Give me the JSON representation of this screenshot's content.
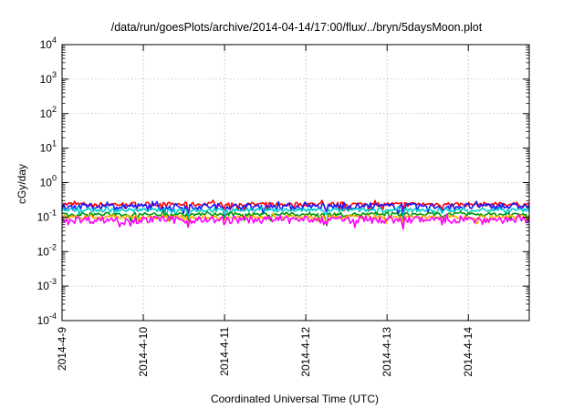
{
  "chart_data": {
    "type": "line",
    "title": "/data/run/goesPlots/archive/2014-04-14/17:00/flux/../bryn/5daysMoon.plot",
    "xlabel": "Coordinated Universal Time (UTC)",
    "ylabel": "cGy/day",
    "y_scale": "log",
    "ylim": [
      0.0001,
      10000
    ],
    "xlim": [
      0,
      5.75
    ],
    "grid": true,
    "x_ticks": [
      "2014-4-9",
      "2014-4-10",
      "2014-4-11",
      "2014-4-12",
      "2014-4-13",
      "2014-4-14"
    ],
    "y_ticks": [
      {
        "value": 0.0001,
        "base": "10",
        "exp": "-4"
      },
      {
        "value": 0.001,
        "base": "10",
        "exp": "-3"
      },
      {
        "value": 0.01,
        "base": "10",
        "exp": "-2"
      },
      {
        "value": 0.1,
        "base": "10",
        "exp": "-1"
      },
      {
        "value": 1,
        "base": "10",
        "exp": "0"
      },
      {
        "value": 10,
        "base": "10",
        "exp": "1"
      },
      {
        "value": 100,
        "base": "10",
        "exp": "2"
      },
      {
        "value": 1000,
        "base": "10",
        "exp": "3"
      },
      {
        "value": 10000,
        "base": "10",
        "exp": "4"
      }
    ],
    "series": [
      {
        "color": "#ff0000",
        "base": 0.235,
        "jitter": 0.035
      },
      {
        "color": "#1a1aff",
        "base": 0.205,
        "jitter": 0.045
      },
      {
        "color": "#00cccc",
        "base": 0.16,
        "jitter": 0.02
      },
      {
        "color": "#009900",
        "base": 0.12,
        "jitter": 0.015
      },
      {
        "color": "#ffaa00",
        "base": 0.1,
        "jitter": 0.012
      },
      {
        "color": "#ff00ff",
        "base": 0.085,
        "jitter": 0.02
      }
    ]
  }
}
